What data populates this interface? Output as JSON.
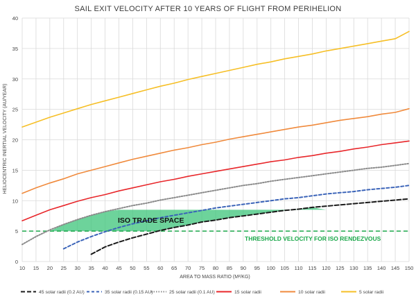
{
  "chart_data": {
    "type": "line",
    "title": "SAIL EXIT VELOCITY AFTER 10 YEARS OF FLIGHT FROM PERIHELION",
    "xlabel": "AREA TO MASS RATIO (M²/KG)",
    "ylabel": "HELIOCENTRIC INERTIAL VELOCITY (AU/YEAR)",
    "xlim": [
      10,
      150
    ],
    "ylim": [
      0,
      40
    ],
    "x_ticks": [
      10,
      15,
      20,
      25,
      30,
      35,
      40,
      45,
      50,
      55,
      60,
      65,
      70,
      75,
      80,
      85,
      90,
      95,
      100,
      105,
      110,
      115,
      120,
      125,
      130,
      135,
      140,
      145,
      150
    ],
    "y_ticks": [
      0,
      5,
      10,
      15,
      20,
      25,
      30,
      35,
      40
    ],
    "grid": true,
    "legend_position": "bottom",
    "series": [
      {
        "name": "45 solar radii (0.2 AU)",
        "color": "#1a1a1a",
        "dash": "6,3",
        "x": [
          35,
          40,
          45,
          50,
          55,
          60,
          65,
          70,
          75,
          80,
          85,
          90,
          95,
          100,
          105,
          110,
          115,
          120,
          125,
          130,
          135,
          140,
          145,
          150
        ],
        "y": [
          1.2,
          2.4,
          3.2,
          3.9,
          4.5,
          5.1,
          5.6,
          6.0,
          6.5,
          6.8,
          7.2,
          7.5,
          7.8,
          8.1,
          8.4,
          8.6,
          8.9,
          9.1,
          9.3,
          9.5,
          9.7,
          9.9,
          10.1,
          10.3
        ]
      },
      {
        "name": "35 solar radii (0.15 AU)",
        "color": "#3a63b8",
        "dash": "4,3",
        "x": [
          25,
          30,
          35,
          40,
          45,
          50,
          55,
          60,
          65,
          70,
          75,
          80,
          85,
          90,
          95,
          100,
          105,
          110,
          115,
          120,
          125,
          130,
          135,
          140,
          145,
          150
        ],
        "y": [
          2.1,
          3.2,
          4.1,
          4.9,
          5.6,
          6.2,
          6.7,
          7.2,
          7.6,
          8.0,
          8.4,
          8.8,
          9.1,
          9.4,
          9.7,
          10.0,
          10.3,
          10.5,
          10.8,
          11.1,
          11.3,
          11.5,
          11.8,
          12.0,
          12.2,
          12.5
        ]
      },
      {
        "name": "25 solar radii (0.1 AU)",
        "color": "#8a8a8a",
        "dash": "1.5,2",
        "x": [
          10,
          15,
          20,
          25,
          30,
          35,
          40,
          45,
          50,
          55,
          60,
          65,
          70,
          75,
          80,
          85,
          90,
          95,
          100,
          105,
          110,
          115,
          120,
          125,
          130,
          135,
          140,
          145,
          150
        ],
        "y": [
          2.8,
          4.1,
          5.2,
          6.1,
          6.9,
          7.6,
          8.2,
          8.7,
          9.2,
          9.6,
          10.1,
          10.5,
          10.9,
          11.3,
          11.7,
          12.1,
          12.5,
          12.8,
          13.2,
          13.5,
          13.8,
          14.1,
          14.4,
          14.7,
          15.0,
          15.3,
          15.5,
          15.8,
          16.1
        ]
      },
      {
        "name": "15 solar radii",
        "color": "#e8262a",
        "dash": "",
        "x": [
          10,
          15,
          20,
          25,
          30,
          35,
          40,
          45,
          50,
          55,
          60,
          65,
          70,
          75,
          80,
          85,
          90,
          95,
          100,
          105,
          110,
          115,
          120,
          125,
          130,
          135,
          140,
          145,
          150
        ],
        "y": [
          6.7,
          7.6,
          8.5,
          9.2,
          9.9,
          10.5,
          11.0,
          11.6,
          12.1,
          12.6,
          13.1,
          13.5,
          14.0,
          14.4,
          14.8,
          15.2,
          15.6,
          16.0,
          16.4,
          16.7,
          17.1,
          17.4,
          17.8,
          18.1,
          18.5,
          18.8,
          19.2,
          19.5,
          19.8
        ]
      },
      {
        "name": "10 solar radii",
        "color": "#f08a3c",
        "dash": "",
        "x": [
          10,
          15,
          20,
          25,
          30,
          35,
          40,
          45,
          50,
          55,
          60,
          65,
          70,
          75,
          80,
          85,
          90,
          95,
          100,
          105,
          110,
          115,
          120,
          125,
          130,
          135,
          140,
          145,
          150
        ],
        "y": [
          11.2,
          12.1,
          12.9,
          13.6,
          14.4,
          15.0,
          15.6,
          16.2,
          16.8,
          17.3,
          17.8,
          18.3,
          18.7,
          19.2,
          19.6,
          20.1,
          20.5,
          20.9,
          21.3,
          21.7,
          22.1,
          22.4,
          22.8,
          23.2,
          23.5,
          23.8,
          24.2,
          24.5,
          25.1
        ]
      },
      {
        "name": "5 solar radii",
        "color": "#f6bf26",
        "dash": "",
        "x": [
          10,
          15,
          20,
          25,
          30,
          35,
          40,
          45,
          50,
          55,
          60,
          65,
          70,
          75,
          80,
          85,
          90,
          95,
          100,
          105,
          110,
          115,
          120,
          125,
          130,
          135,
          140,
          145,
          150
        ],
        "y": [
          22.1,
          22.9,
          23.7,
          24.4,
          25.1,
          25.8,
          26.4,
          27.0,
          27.6,
          28.2,
          28.8,
          29.3,
          29.9,
          30.4,
          30.9,
          31.4,
          31.9,
          32.4,
          32.8,
          33.3,
          33.7,
          34.1,
          34.6,
          35.0,
          35.4,
          35.8,
          36.2,
          36.6,
          37.8
        ]
      }
    ],
    "threshold": {
      "y": 5,
      "label": "THRESHOLD VELOCITY FOR ISO RENDEZVOUS",
      "color": "#1aa84a"
    },
    "trade_space": {
      "label": "ISO TRADE SPACE",
      "color": "#3cc47a",
      "upper_y": 8.5,
      "polygon": [
        [
          20,
          5
        ],
        [
          25,
          6.1
        ],
        [
          30,
          6.9
        ],
        [
          35,
          7.6
        ],
        [
          40,
          8.2
        ],
        [
          45,
          8.5
        ],
        [
          120,
          8.5
        ],
        [
          115,
          8.9
        ],
        [
          110,
          8.6
        ],
        [
          105,
          8.4
        ],
        [
          100,
          8.1
        ],
        [
          95,
          7.8
        ],
        [
          90,
          7.5
        ],
        [
          85,
          7.2
        ],
        [
          80,
          6.8
        ],
        [
          75,
          6.5
        ],
        [
          70,
          6.0
        ],
        [
          65,
          5.6
        ],
        [
          60,
          5.1
        ],
        [
          58,
          5.0
        ]
      ]
    }
  }
}
